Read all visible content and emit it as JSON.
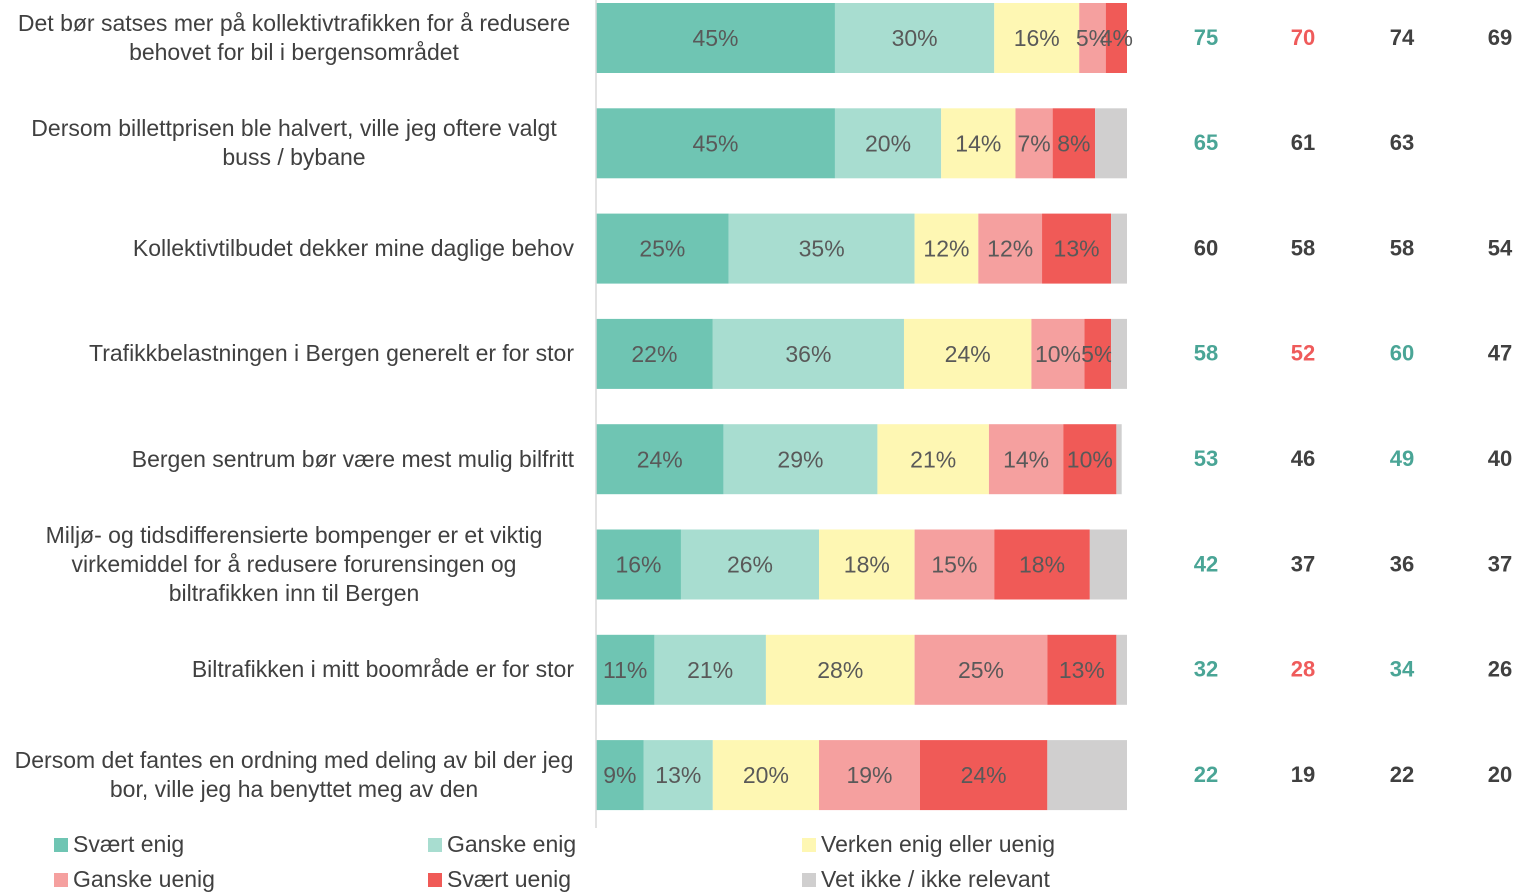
{
  "chart_data": {
    "type": "stacked-bar-horizontal",
    "categories": [
      "Det bør satses mer på kollektivtrafikken for å redusere behovet for bil i bergensområdet",
      "Dersom billettprisen ble halvert, ville jeg oftere valgt buss / bybane",
      "Kollektivtilbudet dekker mine daglige behov",
      "Trafikkbelastningen i Bergen generelt er for stor",
      "Bergen sentrum bør være mest mulig bilfritt",
      "Miljø- og tidsdifferensierte bompenger er et viktig virkemiddel for å redusere forurensingen og biltrafikken inn til Bergen",
      "Biltrafikken i mitt boområde er for stor",
      "Dersom det fantes en ordning med deling av bil der jeg bor, ville jeg ha benyttet meg av den"
    ],
    "xlim": [
      0,
      100
    ],
    "series": [
      {
        "name": "Svært enig",
        "color": "#6fc5b3",
        "values": [
          45,
          45,
          25,
          22,
          24,
          16,
          11,
          9
        ],
        "value_labels": [
          "45%",
          "45%",
          "25%",
          "22%",
          "24%",
          "16%",
          "11%",
          "9%"
        ]
      },
      {
        "name": "Ganske enig",
        "color": "#a8ddd0",
        "values": [
          30,
          20,
          35,
          36,
          29,
          26,
          21,
          13
        ],
        "value_labels": [
          "30%",
          "20%",
          "35%",
          "36%",
          "29%",
          "26%",
          "21%",
          "13%"
        ]
      },
      {
        "name": "Verken enig eller uenig",
        "color": "#fef7b3",
        "values": [
          16,
          14,
          12,
          24,
          21,
          18,
          28,
          20
        ],
        "value_labels": [
          "16%",
          "14%",
          "12%",
          "24%",
          "21%",
          "18%",
          "28%",
          "20%"
        ]
      },
      {
        "name": "Ganske uenig",
        "color": "#f5a09f",
        "values": [
          5,
          7,
          12,
          10,
          14,
          15,
          25,
          19
        ],
        "value_labels": [
          "5%",
          "7%",
          "12%",
          "10%",
          "14%",
          "15%",
          "25%",
          "19%"
        ]
      },
      {
        "name": "Svært uenig",
        "color": "#f05a57",
        "values": [
          4,
          8,
          13,
          5,
          10,
          18,
          13,
          24
        ],
        "value_labels": [
          "4%",
          "8%",
          "13%",
          "5%",
          "10%",
          "18%",
          "13%",
          "24%"
        ]
      },
      {
        "name": "Vet ikke / ikke relevant",
        "color": "#d0cfcf",
        "values": [
          0,
          6,
          3,
          3,
          1,
          7,
          2,
          15
        ]
      }
    ],
    "side_values": [
      [
        75,
        65,
        60,
        58,
        53,
        42,
        32,
        22
      ],
      [
        70,
        61,
        58,
        52,
        46,
        37,
        28,
        19
      ],
      [
        74,
        63,
        58,
        60,
        49,
        36,
        34,
        22
      ],
      [
        69,
        null,
        54,
        47,
        40,
        37,
        26,
        20
      ]
    ],
    "side_colors": [
      [
        "#4aa596",
        "#4aa596",
        "#404040",
        "#4aa596",
        "#4aa596",
        "#4aa596",
        "#4aa596",
        "#4aa596"
      ],
      [
        "#ef5b5b",
        "#404040",
        "#404040",
        "#ef5b5b",
        "#404040",
        "#404040",
        "#ef5b5b",
        "#404040"
      ],
      [
        "#404040",
        "#404040",
        "#404040",
        "#4aa596",
        "#4aa596",
        "#404040",
        "#4aa596",
        "#404040"
      ],
      [
        "#404040",
        "#404040",
        "#404040",
        "#404040",
        "#404040",
        "#404040",
        "#404040",
        "#404040"
      ]
    ]
  }
}
